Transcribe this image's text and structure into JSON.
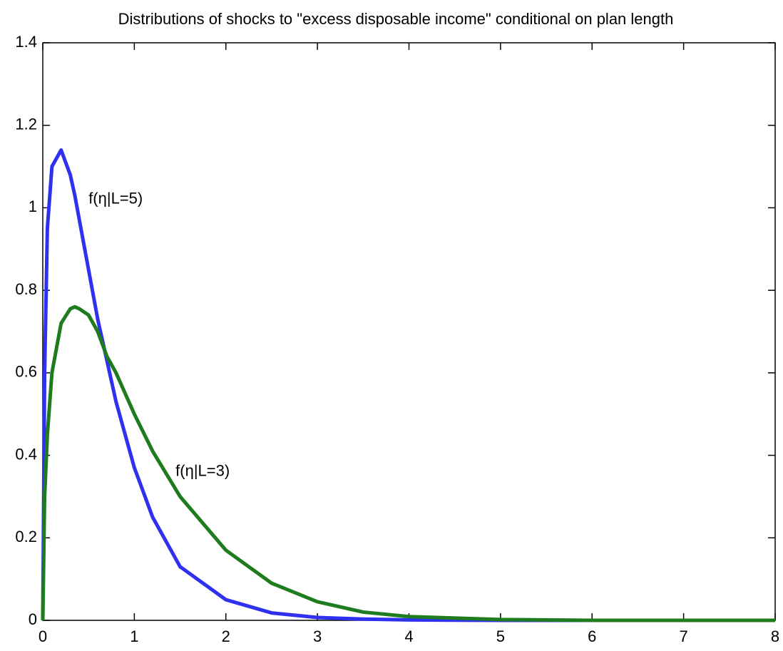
{
  "chart_data": {
    "type": "line",
    "title": "Distributions of shocks to \"excess disposable income\" conditional on plan length",
    "x": [
      0,
      0.02,
      0.05,
      0.1,
      0.2,
      0.3,
      0.35,
      0.4,
      0.5,
      0.6,
      0.7,
      0.8,
      1.0,
      1.2,
      1.5,
      2,
      2.5,
      3,
      3.5,
      4,
      5,
      6,
      7,
      8
    ],
    "series": [
      {
        "name": "f(η|L=5)",
        "color": "#3030f0",
        "values": [
          0,
          0.6,
          0.95,
          1.1,
          1.14,
          1.08,
          1.03,
          0.97,
          0.85,
          0.73,
          0.63,
          0.53,
          0.37,
          0.25,
          0.13,
          0.05,
          0.018,
          0.007,
          0.003,
          0.001,
          0,
          0,
          0,
          0
        ]
      },
      {
        "name": "f(η|L=3)",
        "color": "#1e7b1e",
        "values": [
          0,
          0.3,
          0.45,
          0.6,
          0.72,
          0.755,
          0.76,
          0.755,
          0.74,
          0.7,
          0.64,
          0.6,
          0.5,
          0.41,
          0.3,
          0.17,
          0.09,
          0.045,
          0.02,
          0.009,
          0.002,
          0,
          0,
          0
        ]
      }
    ],
    "xlim": [
      0,
      8
    ],
    "xticks": [
      0,
      1,
      2,
      3,
      4,
      5,
      6,
      7,
      8
    ],
    "ylim": [
      0,
      1.4
    ],
    "yticks": [
      0,
      0.2,
      0.4,
      0.6,
      0.8,
      1,
      1.2,
      1.4
    ],
    "grid": false
  }
}
